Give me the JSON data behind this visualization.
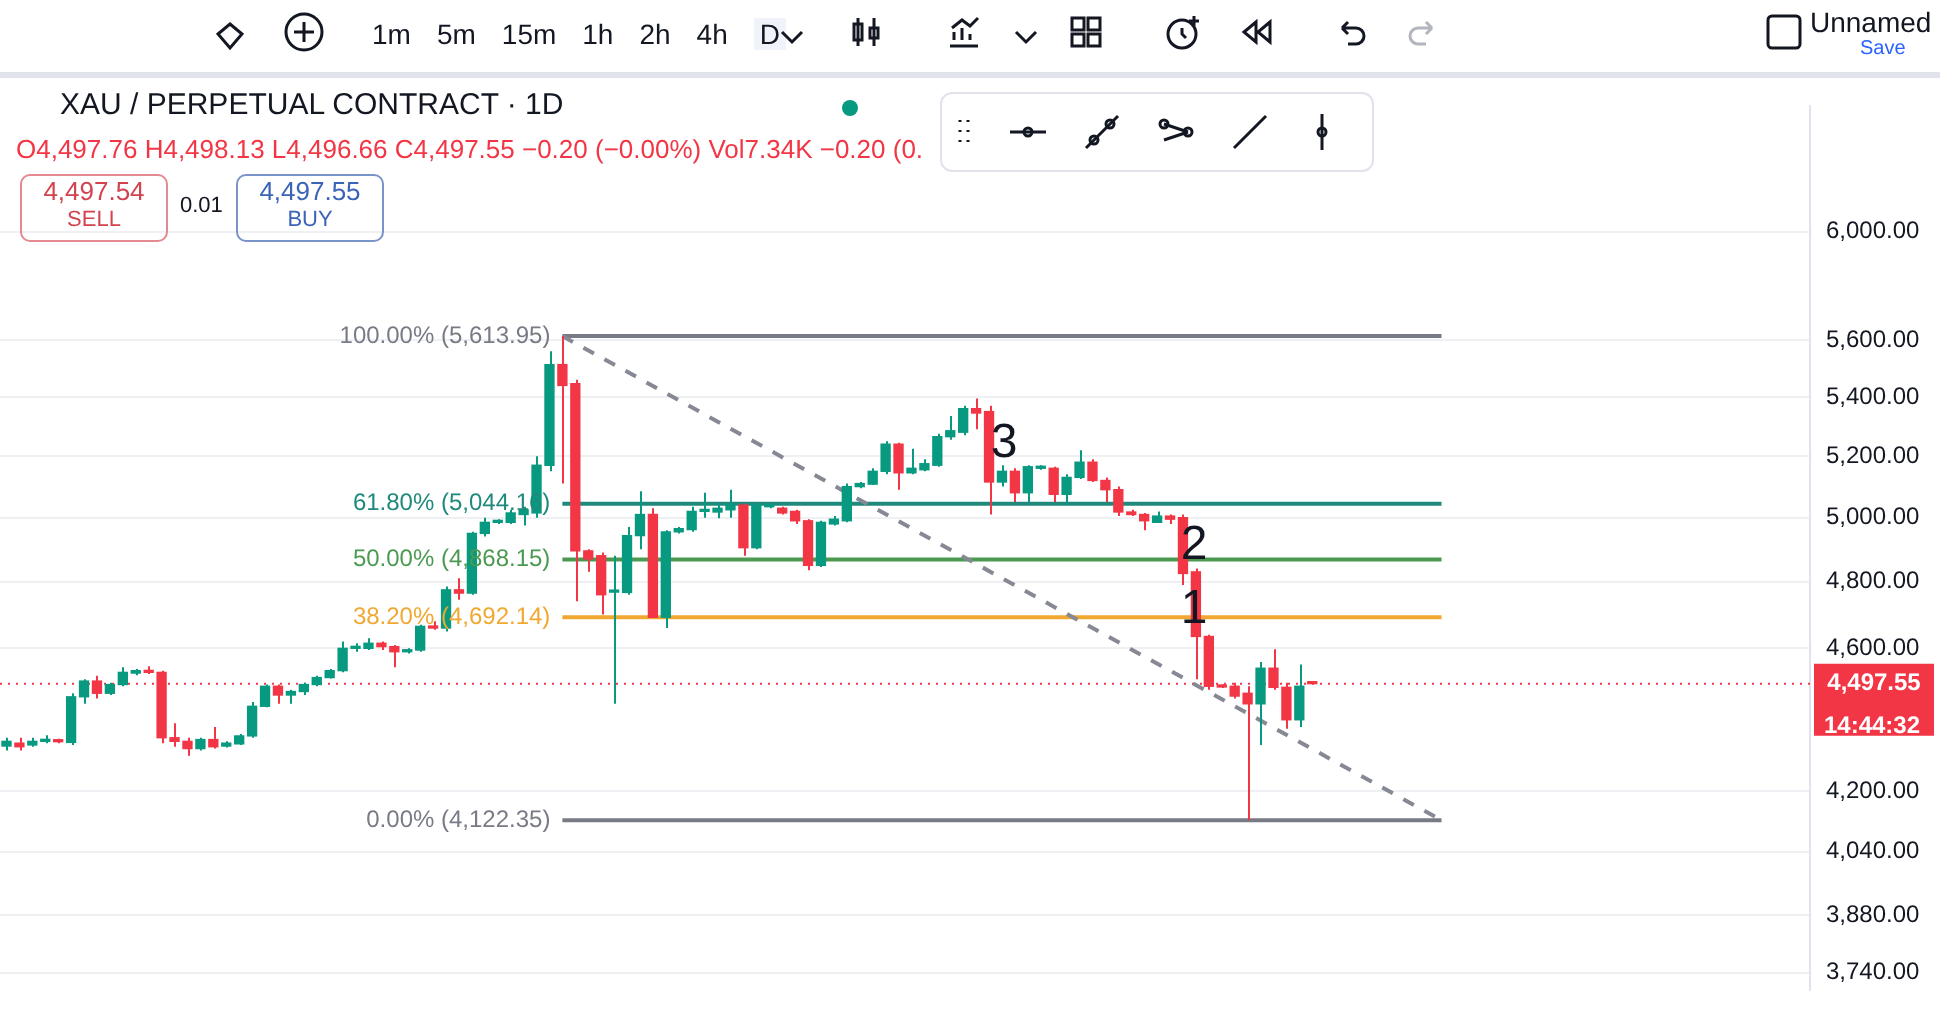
{
  "chart_data": {
    "type": "candlestick",
    "title": "XAU / PERPETUAL CONTRACT · 1D",
    "subtitle": "O4,497.76 H4,498.13 L4,496.66 C4,497.55 −0.20 (−0.00%) Vol7.34K −0.20 (0.",
    "categories": [
      null,
      null,
      null,
      null,
      null,
      null,
      null,
      null,
      null,
      null,
      null,
      null,
      null,
      null,
      null,
      null,
      null,
      null,
      null,
      null,
      null,
      null,
      null,
      null,
      null,
      null,
      null,
      null,
      null,
      null,
      null,
      null,
      null,
      null,
      null,
      null,
      null,
      null,
      null,
      null,
      null,
      null,
      null,
      null,
      null,
      null,
      null,
      null,
      null,
      null,
      null,
      null,
      null,
      null,
      null,
      null,
      null,
      null,
      null,
      null,
      null,
      null,
      null,
      null,
      null,
      null,
      null,
      null,
      null,
      null,
      null,
      null,
      null,
      null,
      null,
      null,
      null,
      null,
      null,
      null,
      null,
      null,
      null,
      null,
      null,
      null,
      null,
      null,
      null,
      null,
      null,
      null,
      null,
      null,
      null,
      null,
      null,
      null,
      null,
      null,
      null,
      null,
      null,
      null,
      null,
      null,
      null,
      null,
      null,
      null,
      null,
      null,
      null,
      null,
      null,
      null,
      null,
      null,
      null,
      null,
      null,
      null,
      null,
      null,
      null,
      null,
      null,
      null,
      null,
      null,
      null,
      null,
      null,
      null,
      null,
      null,
      null,
      null,
      null,
      null
    ],
    "ohlc": [
      [
        4322,
        4345,
        4310,
        4335
      ],
      [
        4330,
        4345,
        4310,
        4320
      ],
      [
        4325,
        4345,
        4320,
        4335
      ],
      [
        4335,
        4352,
        4330,
        4338
      ],
      [
        4338,
        4342,
        4330,
        4334
      ],
      [
        4332,
        4470,
        4325,
        4460
      ],
      [
        4460,
        4510,
        4440,
        4505
      ],
      [
        4505,
        4520,
        4455,
        4470
      ],
      [
        4470,
        4500,
        4465,
        4495
      ],
      [
        4495,
        4545,
        4490,
        4530
      ],
      [
        4528,
        4540,
        4522,
        4535
      ],
      [
        4535,
        4548,
        4525,
        4530
      ],
      [
        4530,
        4535,
        4330,
        4345
      ],
      [
        4345,
        4385,
        4320,
        4335
      ],
      [
        4335,
        4345,
        4295,
        4315
      ],
      [
        4315,
        4345,
        4310,
        4340
      ],
      [
        4340,
        4375,
        4315,
        4320
      ],
      [
        4322,
        4335,
        4318,
        4330
      ],
      [
        4328,
        4355,
        4325,
        4350
      ],
      [
        4350,
        4445,
        4345,
        4433
      ],
      [
        4433,
        4495,
        4430,
        4490
      ],
      [
        4490,
        4495,
        4440,
        4465
      ],
      [
        4465,
        4480,
        4440,
        4475
      ],
      [
        4475,
        4500,
        4465,
        4495
      ],
      [
        4495,
        4520,
        4490,
        4515
      ],
      [
        4515,
        4540,
        4512,
        4535
      ],
      [
        4535,
        4620,
        4530,
        4600
      ],
      [
        4600,
        4615,
        4590,
        4602
      ],
      [
        4600,
        4630,
        4595,
        4615
      ],
      [
        4615,
        4620,
        4595,
        4605
      ],
      [
        4605,
        4610,
        4545,
        4590
      ],
      [
        4590,
        4600,
        4585,
        4595
      ],
      [
        4595,
        4670,
        4590,
        4665
      ],
      [
        4665,
        4680,
        4655,
        4660
      ],
      [
        4660,
        4785,
        4650,
        4775
      ],
      [
        4775,
        4810,
        4745,
        4765
      ],
      [
        4765,
        4955,
        4760,
        4950
      ],
      [
        4950,
        5000,
        4940,
        4985
      ],
      [
        4985,
        4995,
        4980,
        4990
      ],
      [
        4985,
        5025,
        4980,
        5015
      ],
      [
        5010,
        5035,
        4975,
        5025
      ],
      [
        5015,
        5200,
        5000,
        5170
      ],
      [
        5170,
        5560,
        5150,
        5513
      ],
      [
        5513,
        5613.95,
        5110,
        5440
      ],
      [
        5446,
        5460,
        4740,
        4895
      ],
      [
        4895,
        4900,
        4830,
        4870
      ],
      [
        4880,
        4890,
        4700,
        4760
      ],
      [
        4768,
        4880,
        4440,
        4770
      ],
      [
        4767,
        4970,
        4760,
        4943
      ],
      [
        4943,
        5085,
        4900,
        5010
      ],
      [
        5010,
        5030,
        4690,
        4692
      ],
      [
        4692,
        4960,
        4660,
        4955
      ],
      [
        4955,
        4970,
        4950,
        4965
      ],
      [
        4962,
        5035,
        4955,
        5020
      ],
      [
        5020,
        5080,
        5000,
        5025
      ],
      [
        5018,
        5045,
        4998,
        5030
      ],
      [
        5025,
        5090,
        5000,
        5040
      ],
      [
        5040,
        5045,
        4880,
        4905
      ],
      [
        4905,
        5045,
        4900,
        5040
      ],
      [
        5035,
        5040,
        5030,
        5035
      ],
      [
        5030,
        5035,
        5010,
        5015
      ],
      [
        5020,
        5025,
        4980,
        4990
      ],
      [
        4990,
        4995,
        4835,
        4850
      ],
      [
        4850,
        4990,
        4845,
        4985
      ],
      [
        4980,
        5005,
        4975,
        4995
      ],
      [
        4990,
        5110,
        4985,
        5100
      ],
      [
        5100,
        5115,
        5095,
        5110
      ],
      [
        5108,
        5160,
        5105,
        5150
      ],
      [
        5150,
        5250,
        5140,
        5240
      ],
      [
        5240,
        5245,
        5090,
        5145
      ],
      [
        5145,
        5225,
        5140,
        5160
      ],
      [
        5155,
        5190,
        5150,
        5175
      ],
      [
        5170,
        5275,
        5165,
        5265
      ],
      [
        5265,
        5335,
        5255,
        5285
      ],
      [
        5280,
        5370,
        5270,
        5360
      ],
      [
        5360,
        5395,
        5290,
        5345
      ],
      [
        5350,
        5370,
        5010,
        5115
      ],
      [
        5115,
        5170,
        5100,
        5150
      ],
      [
        5150,
        5160,
        5050,
        5080
      ],
      [
        5080,
        5170,
        5050,
        5165
      ],
      [
        5160,
        5170,
        5155,
        5160
      ],
      [
        5160,
        5165,
        5050,
        5075
      ],
      [
        5075,
        5140,
        5040,
        5130
      ],
      [
        5130,
        5220,
        5125,
        5180
      ],
      [
        5180,
        5190,
        5115,
        5120
      ],
      [
        5120,
        5130,
        5050,
        5090
      ],
      [
        5090,
        5100,
        5005,
        5018
      ],
      [
        5018,
        5025,
        5005,
        5010
      ],
      [
        5010,
        5015,
        4960,
        4990
      ],
      [
        4985,
        5020,
        4985,
        5005
      ],
      [
        5005,
        5010,
        4980,
        4995
      ],
      [
        5000,
        5010,
        4790,
        4825
      ],
      [
        4830,
        4840,
        4510,
        4635
      ],
      [
        4635,
        4640,
        4480,
        4490
      ],
      [
        4490,
        4495,
        4485,
        4488
      ],
      [
        4490,
        4500,
        4455,
        4462
      ],
      [
        4470,
        4490,
        4122.35,
        4440
      ],
      [
        4440,
        4560,
        4325,
        4542
      ],
      [
        4542,
        4597,
        4480,
        4487
      ],
      [
        4487,
        4500,
        4370,
        4395
      ],
      [
        4395,
        4553,
        4375,
        4490
      ],
      [
        4497.76,
        4498.13,
        4496.66,
        4497.55
      ],
      null,
      null,
      null,
      null,
      null,
      null,
      null,
      null,
      null,
      null,
      null,
      null,
      null,
      null,
      null,
      null,
      null,
      null,
      null,
      null,
      null,
      null,
      null,
      null,
      null,
      null,
      null,
      null,
      null,
      null,
      null,
      null,
      null,
      null,
      null,
      null,
      null,
      null
    ],
    "series": [
      {
        "type": "line",
        "color": "#868993",
        "line_style": "dashed",
        "values": [
          null,
          null,
          null,
          null,
          null,
          null,
          null,
          null,
          null,
          null,
          null,
          null,
          null,
          null,
          null,
          null,
          null,
          null,
          null,
          null,
          null,
          null,
          null,
          null,
          null,
          null,
          null,
          null,
          null,
          null,
          null,
          null,
          null,
          null,
          null,
          null,
          null,
          null,
          null,
          null,
          null,
          null,
          null,
          5613.95,
          null,
          null,
          null,
          null,
          null,
          null,
          null,
          null,
          null,
          null,
          null,
          null,
          null,
          null,
          null,
          null,
          null,
          null,
          null,
          null,
          null,
          null,
          null,
          null,
          null,
          null,
          null,
          null,
          null,
          null,
          null,
          null,
          null,
          null,
          null,
          null,
          null,
          null,
          null,
          null,
          null,
          null,
          null,
          null,
          null,
          null,
          null,
          null,
          null,
          null,
          null,
          null,
          null,
          null,
          null,
          null,
          null,
          null,
          null,
          null,
          null,
          null,
          null,
          null,
          null,
          null,
          null,
          4122.35,
          null,
          null,
          null,
          null,
          null,
          null,
          null,
          null,
          null,
          null,
          null,
          null,
          null,
          null,
          null,
          null,
          null,
          null,
          null,
          null,
          null,
          null,
          null,
          null,
          null,
          null,
          null,
          null
        ]
      }
    ],
    "ylim": [
      3700,
      6500
    ],
    "log": true,
    "grid": "y",
    "yticks": [
      {
        "value": 3740,
        "label": "3,740.00"
      },
      {
        "value": 3880,
        "label": "3,880.00"
      },
      {
        "value": 4040,
        "label": "4,040.00"
      },
      {
        "value": 4200,
        "label": "4,200.00"
      },
      {
        "value": 4600,
        "label": "4,600.00"
      },
      {
        "value": 4800,
        "label": "4,800.00"
      },
      {
        "value": 5000,
        "label": "5,000.00"
      },
      {
        "value": 5200,
        "label": "5,200.00"
      },
      {
        "value": 5400,
        "label": "5,400.00"
      },
      {
        "value": 5600,
        "label": "5,600.00"
      },
      {
        "value": 6000,
        "label": "6,000.00"
      }
    ],
    "ref_lines": [
      {
        "axis": "y",
        "value": 5613.95,
        "label": "100.00% (5,613.95)",
        "color": "#787b86",
        "line_style": "solid"
      },
      {
        "axis": "y",
        "value": 5044.16,
        "label": "61.80% (5,044.16)",
        "color": "#1f8a7c",
        "line_style": "solid"
      },
      {
        "axis": "y",
        "value": 4868.15,
        "label": "50.00% (4,868.15)",
        "color": "#4c9a52",
        "line_style": "solid"
      },
      {
        "axis": "y",
        "value": 4692.14,
        "label": "38.20% (4,692.14)",
        "color": "#f0a830",
        "line_style": "solid"
      },
      {
        "axis": "y",
        "value": 4122.35,
        "label": "0.00% (4,122.35)",
        "color": "#787b86",
        "line_style": "solid"
      },
      {
        "axis": "y",
        "value": 4497.55,
        "label": "4,497.55",
        "color": "#f23645",
        "line_style": "dotted"
      }
    ],
    "annotations": [
      "3",
      "2",
      "1",
      "14:44:32",
      "4,497.54",
      "SELL",
      "0.01",
      "4,497.55",
      "BUY",
      "1m",
      "5m",
      "15m",
      "1h",
      "2h",
      "4h",
      "D",
      "Unnamed",
      "Save"
    ]
  }
}
